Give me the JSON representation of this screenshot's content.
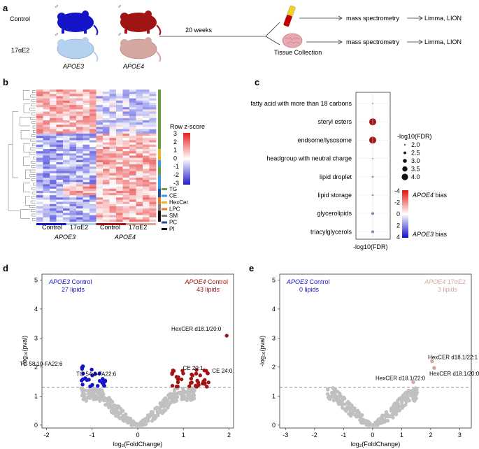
{
  "panel_labels": {
    "a": "a",
    "b": "b",
    "c": "c",
    "d": "d",
    "e": "e"
  },
  "colors": {
    "apoe3_control": "#1414c8",
    "apoe3_17ae2": "#b4d2f0",
    "apoe4_control": "#a01414",
    "apoe4_17ae2": "#d4a8a0",
    "grey_point": "#c0c0c0"
  },
  "panel_a": {
    "control_label": "Control",
    "treatment_label": "17αE2",
    "genotype_apoe3": "APOE3",
    "genotype_apoe4": "APOE4",
    "duration": "20 weeks",
    "tissue_collection": "Tissue Collection",
    "step_ms": "mass spectrometry",
    "step_analysis": "Limma, LION",
    "male_symbol": "♂"
  },
  "panel_b": {
    "row_z_title": "Row z-score",
    "z_ticks": [
      "3",
      "2",
      "1",
      "0",
      "-1",
      "-2",
      "-3"
    ],
    "legend": [
      {
        "label": "TG",
        "color": "#6a9a3c"
      },
      {
        "label": "CE",
        "color": "#3a9ad9"
      },
      {
        "label": "HexCer",
        "color": "#e6b422"
      },
      {
        "label": "LPC",
        "color": "#e07b22"
      },
      {
        "label": "SM",
        "color": "#7f7f7f"
      },
      {
        "label": "PC",
        "color": "#2a4a9a"
      },
      {
        "label": "PI",
        "color": "#111111"
      }
    ],
    "x_group_labels": [
      "Control",
      "17αE2",
      "Control",
      "17αE2"
    ],
    "x_genotypes": [
      "APOE3",
      "APOE4"
    ]
  },
  "panel_c": {
    "terms": [
      {
        "name": "fatty acid with more than 18 carbons",
        "neglog10fdr": 2.0,
        "bias": -1.8
      },
      {
        "name": "steryl esters",
        "neglog10fdr": 3.9,
        "bias": -4.0
      },
      {
        "name": "endsome/lysosome",
        "neglog10fdr": 3.9,
        "bias": -4.0
      },
      {
        "name": "headgroup with neutral charge",
        "neglog10fdr": 1.9,
        "bias": 3.0
      },
      {
        "name": "lipid droplet",
        "neglog10fdr": 2.1,
        "bias": 3.0
      },
      {
        "name": "lipid storage",
        "neglog10fdr": 2.1,
        "bias": 3.0
      },
      {
        "name": "glycerolipids",
        "neglog10fdr": 2.4,
        "bias": 3.2
      },
      {
        "name": "triacylglycerols",
        "neglog10fdr": 2.4,
        "bias": 3.2
      }
    ],
    "xlabel": "-log10(FDR)",
    "size_legend_title": "-log10(FDR)",
    "size_legend": [
      "2.0",
      "2.5",
      "3.0",
      "3.5",
      "4.0"
    ],
    "color_ticks": [
      "-4",
      "-2",
      "0",
      "2",
      "4"
    ],
    "bias_apoe4": "APOE4",
    "bias_apoe3": "APOE3",
    "bias_word": "bias"
  },
  "chart_data": [
    {
      "type": "scatter",
      "panel": "d",
      "xlabel": "log₂(FoldChange)",
      "ylabel": "-log₁₀(pval)",
      "xlim": [
        -2.1,
        2.1
      ],
      "ylim": [
        -0.1,
        5.2
      ],
      "xticks": [
        "-2",
        "-1",
        "0",
        "1",
        "2"
      ],
      "yticks": [
        "0",
        "1",
        "2",
        "3",
        "4",
        "5"
      ],
      "threshold": 1.3,
      "left_title_geno": "APOE3",
      "left_title_cond": "Control",
      "left_count": "27 lipids",
      "right_title_geno": "APOE4",
      "right_title_cond": "Control",
      "right_count": "43 lipids",
      "annotations": [
        {
          "text": "HexCER d18.1/20:0",
          "x": 1.95,
          "y": 3.08
        },
        {
          "text": "TG 58:10-FA22:6",
          "x": -1.25,
          "y": 1.95
        },
        {
          "text": "TG 54:8-FA22:6",
          "x": -0.75,
          "y": 1.55
        },
        {
          "text": "CE 20:1",
          "x": 1.05,
          "y": 1.85
        },
        {
          "text": "CE 24:0",
          "x": 1.6,
          "y": 1.85
        }
      ]
    },
    {
      "type": "scatter",
      "panel": "e",
      "xlabel": "log₂(FoldChange)",
      "ylabel": "-log₁₀(pval)",
      "xlim": [
        -3.2,
        3.4
      ],
      "ylim": [
        -0.1,
        5.2
      ],
      "xticks": [
        "-3",
        "-2",
        "-1",
        "0",
        "1",
        "2",
        "3"
      ],
      "yticks": [
        "0",
        "1",
        "2",
        "3",
        "4",
        "5"
      ],
      "threshold": 1.3,
      "left_title_geno": "APOE3",
      "left_title_cond": "Control",
      "left_count": "0 lipids",
      "right_title_geno": "APOE4",
      "right_title_cond": "17αE2",
      "right_count": "3 lipids",
      "annotations": [
        {
          "text": "HexCER d18.1/22:1",
          "x": 2.05,
          "y": 2.2
        },
        {
          "text": "HexCER d18.1/22:0",
          "x": 1.4,
          "y": 1.48
        },
        {
          "text": "HexCER d18.1/20:0",
          "x": 2.1,
          "y": 1.95
        }
      ]
    }
  ]
}
